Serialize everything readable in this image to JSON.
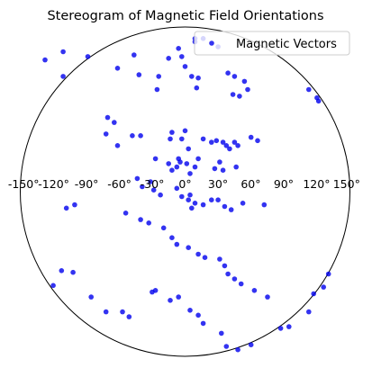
{
  "chart_data": {
    "type": "scatter",
    "projection": "stereographic",
    "title": "Stereogram of Magnetic Field Orientations",
    "xlabel": "",
    "ylabel": "",
    "x_tick_labels": [
      "-150°",
      "-120°",
      "-90°",
      "-60°",
      "-30°",
      "0°",
      "30°",
      "60°",
      "90°",
      "120°",
      "150°"
    ],
    "xlim": [
      -1,
      1
    ],
    "ylim": [
      -1,
      1
    ],
    "grid": false,
    "legend": {
      "position": "top-right",
      "entries": [
        "Magnetic Vectors"
      ]
    },
    "colors": {
      "marker": "#0000ee",
      "boundary": "#000000"
    },
    "series": [
      {
        "name": "Magnetic Vectors",
        "points": [
          [
            -0.59,
            0.82
          ],
          [
            -0.74,
            0.85
          ],
          [
            -0.74,
            0.7
          ],
          [
            -0.85,
            0.8
          ],
          [
            -0.31,
            0.83
          ],
          [
            -0.28,
            0.71
          ],
          [
            -0.16,
            0.7
          ],
          [
            -0.17,
            0.62
          ],
          [
            -0.1,
            0.81
          ],
          [
            -0.04,
            0.87
          ],
          [
            -0.02,
            0.82
          ],
          [
            0.0,
            0.76
          ],
          [
            0.04,
            0.7
          ],
          [
            0.07,
            0.63
          ],
          [
            0.08,
            0.69
          ],
          [
            0.11,
            0.93
          ],
          [
            0.06,
            0.93
          ],
          [
            0.06,
            0.91
          ],
          [
            0.2,
            0.88
          ],
          [
            0.26,
            0.72
          ],
          [
            0.3,
            0.7
          ],
          [
            0.29,
            0.59
          ],
          [
            0.36,
            0.67
          ],
          [
            0.33,
            0.58
          ],
          [
            0.38,
            0.62
          ],
          [
            0.75,
            0.62
          ],
          [
            0.8,
            0.57
          ],
          [
            0.81,
            0.55
          ],
          [
            -0.41,
            0.75
          ],
          [
            -0.47,
            0.45
          ],
          [
            -0.43,
            0.42
          ],
          [
            -0.32,
            0.34
          ],
          [
            -0.27,
            0.34
          ],
          [
            -0.48,
            0.35
          ],
          [
            -0.41,
            0.28
          ],
          [
            -0.08,
            0.36
          ],
          [
            0.0,
            0.37
          ],
          [
            -0.09,
            0.32
          ],
          [
            -0.02,
            0.32
          ],
          [
            0.11,
            0.32
          ],
          [
            0.16,
            0.3
          ],
          [
            0.19,
            0.31
          ],
          [
            0.23,
            0.3
          ],
          [
            0.3,
            0.3
          ],
          [
            0.25,
            0.28
          ],
          [
            0.27,
            0.26
          ],
          [
            0.32,
            0.28
          ],
          [
            0.4,
            0.33
          ],
          [
            0.44,
            0.31
          ],
          [
            -0.08,
            0.13
          ],
          [
            -0.04,
            0.2
          ],
          [
            0.02,
            0.26
          ],
          [
            -0.18,
            0.2
          ],
          [
            -0.1,
            0.17
          ],
          [
            -0.05,
            0.15
          ],
          [
            -0.03,
            0.18
          ],
          [
            0.01,
            0.17
          ],
          [
            0.03,
            0.11
          ],
          [
            0.06,
            0.15
          ],
          [
            0.08,
            0.2
          ],
          [
            0.18,
            0.14
          ],
          [
            0.21,
            0.18
          ],
          [
            0.23,
            0.13
          ],
          [
            0.31,
            0.15
          ],
          [
            -0.29,
            0.08
          ],
          [
            -0.26,
            0.03
          ],
          [
            -0.21,
            0.06
          ],
          [
            -0.19,
            0.01
          ],
          [
            -0.15,
            -0.02
          ],
          [
            -0.05,
            0.02
          ],
          [
            -0.02,
            -0.03
          ],
          [
            0.02,
            -0.05
          ],
          [
            0.04,
            -0.1
          ],
          [
            0.06,
            -0.07
          ],
          [
            0.03,
            -0.02
          ],
          [
            0.11,
            -0.08
          ],
          [
            0.16,
            -0.05
          ],
          [
            0.2,
            -0.05
          ],
          [
            0.24,
            -0.09
          ],
          [
            0.28,
            -0.11
          ],
          [
            0.35,
            -0.07
          ],
          [
            0.48,
            -0.08
          ],
          [
            -0.67,
            -0.08
          ],
          [
            -0.72,
            -0.1
          ],
          [
            -0.36,
            -0.13
          ],
          [
            -0.27,
            -0.17
          ],
          [
            -0.22,
            -0.19
          ],
          [
            -0.13,
            -0.22
          ],
          [
            -0.08,
            -0.28
          ],
          [
            -0.05,
            -0.32
          ],
          [
            0.02,
            -0.34
          ],
          [
            0.08,
            -0.38
          ],
          [
            0.12,
            -0.4
          ],
          [
            0.21,
            -0.41
          ],
          [
            0.24,
            -0.45
          ],
          [
            0.26,
            -0.5
          ],
          [
            0.3,
            -0.53
          ],
          [
            0.34,
            -0.56
          ],
          [
            0.42,
            -0.6
          ],
          [
            0.5,
            -0.64
          ],
          [
            -0.8,
            -0.57
          ],
          [
            -0.75,
            -0.48
          ],
          [
            -0.68,
            -0.49
          ],
          [
            -0.57,
            -0.64
          ],
          [
            -0.48,
            -0.73
          ],
          [
            -0.38,
            -0.73
          ],
          [
            -0.34,
            -0.76
          ],
          [
            -0.2,
            -0.61
          ],
          [
            -0.18,
            -0.6
          ],
          [
            -0.09,
            -0.66
          ],
          [
            -0.04,
            -0.64
          ],
          [
            0.03,
            -0.72
          ],
          [
            0.08,
            -0.75
          ],
          [
            0.11,
            -0.8
          ],
          [
            0.22,
            -0.86
          ],
          [
            0.25,
            -0.94
          ],
          [
            0.32,
            -0.96
          ],
          [
            0.4,
            -0.93
          ],
          [
            0.58,
            -0.83
          ],
          [
            0.63,
            -0.82
          ],
          [
            0.75,
            -0.73
          ],
          [
            0.78,
            -0.62
          ],
          [
            0.84,
            -0.58
          ],
          [
            0.87,
            -0.5
          ]
        ]
      }
    ]
  }
}
